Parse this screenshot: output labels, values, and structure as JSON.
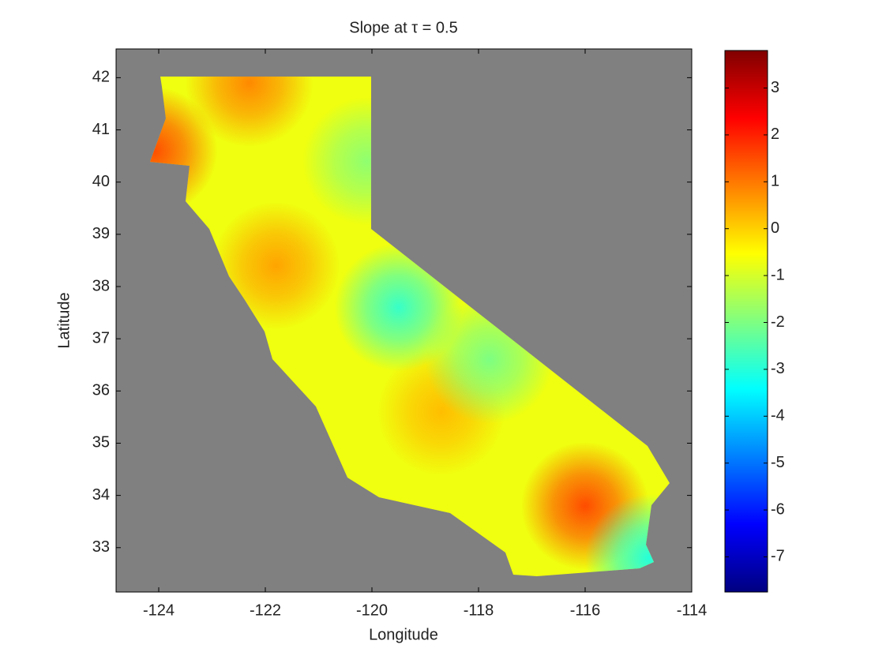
{
  "chart_data": {
    "type": "heatmap-map",
    "title": "Slope at τ = 0.5",
    "x_label": "Longitude",
    "y_label": "Latitude",
    "xlim": [
      -124.8,
      -114
    ],
    "xticks": [
      -124,
      -122,
      -120,
      -118,
      -116,
      -114
    ],
    "ylim": [
      32.15,
      42.55
    ],
    "yticks": [
      33,
      34,
      35,
      36,
      37,
      38,
      39,
      40,
      41,
      42
    ],
    "colormap": "jet",
    "clim": [
      -7.75,
      3.8
    ],
    "cticks": [
      -7,
      -6,
      -5,
      -4,
      -3,
      -2,
      -1,
      0,
      1,
      2,
      3
    ],
    "background_color": "#808080",
    "field": {
      "base": -0.7,
      "hotspots": [
        {
          "lon": -121.8,
          "lat": 38.4,
          "value": 0.5
        },
        {
          "lon": -118.7,
          "lat": 35.6,
          "value": 0.2
        },
        {
          "lon": -116.0,
          "lat": 33.8,
          "value": 1.5
        },
        {
          "lon": -124.1,
          "lat": 40.6,
          "value": 1.5
        },
        {
          "lon": -122.3,
          "lat": 41.9,
          "value": 0.8
        },
        {
          "lon": -119.5,
          "lat": 37.6,
          "value": -2.8
        },
        {
          "lon": -120.1,
          "lat": 40.4,
          "value": -1.8
        },
        {
          "lon": -114.8,
          "lat": 32.8,
          "value": -3.0
        },
        {
          "lon": -117.8,
          "lat": 36.6,
          "value": -2.0
        }
      ]
    }
  }
}
